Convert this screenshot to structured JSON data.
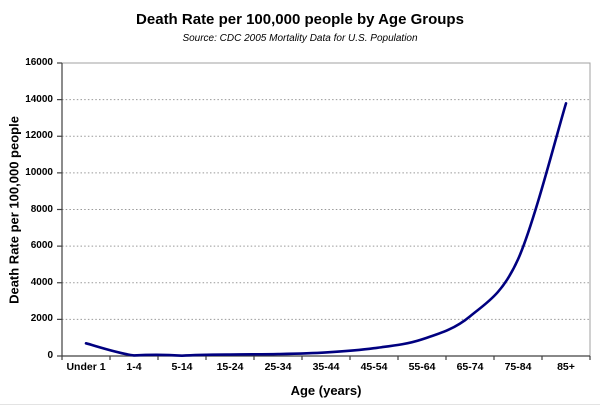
{
  "chart_data": {
    "type": "line",
    "title": "Death Rate per 100,000 people by Age Groups",
    "subtitle": "Source: CDC 2005 Mortality Data for U.S. Population",
    "xlabel": "Age (years)",
    "ylabel": "Death Rate per 100,000 people",
    "categories": [
      "Under 1",
      "1-4",
      "5-14",
      "15-24",
      "25-34",
      "35-44",
      "45-54",
      "55-64",
      "65-74",
      "75-84",
      "85+"
    ],
    "values": [
      693,
      29,
      16,
      81,
      104,
      194,
      427,
      910,
      2165,
      5275,
      13798
    ],
    "ylim": [
      0,
      16000
    ],
    "y_ticks": [
      0,
      2000,
      4000,
      6000,
      8000,
      10000,
      12000,
      14000,
      16000
    ],
    "grid": "horizontal-dotted",
    "legend": "none",
    "smooth": true,
    "colors": {
      "line": "#000080",
      "gridline": "#999999",
      "axis": "#404040",
      "plot_border": "#a0a0a0",
      "text": "#000000"
    }
  }
}
